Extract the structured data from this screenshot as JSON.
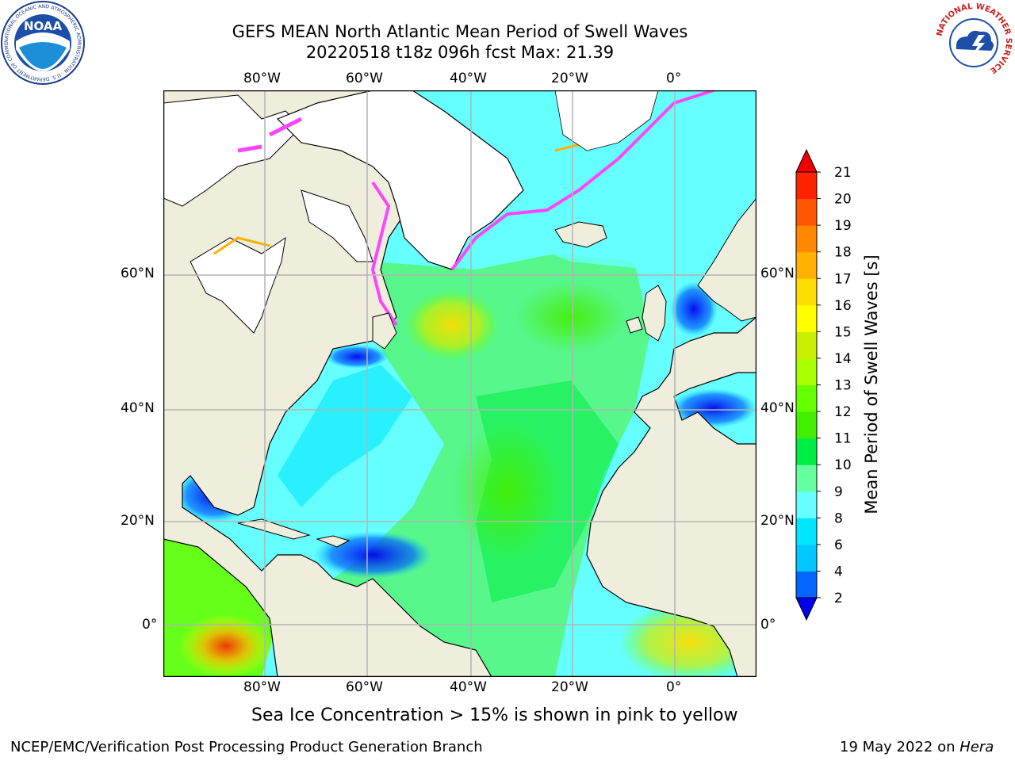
{
  "title": {
    "line1": "GEFS MEAN North Atlantic Mean Period of Swell Waves",
    "line2": "20220518 t18z 096h fcst   Max: 21.39"
  },
  "map": {
    "lon_range": [
      -100,
      16
    ],
    "lat_range": [
      -10,
      77
    ],
    "lon_ticks": [
      "80°W",
      "60°W",
      "40°W",
      "20°W",
      "0°"
    ],
    "lat_ticks": [
      "60°N",
      "40°N",
      "20°N",
      "0°"
    ],
    "gridlines": true,
    "colors": {
      "land": "#efeedd",
      "ice_land": "#ffffff",
      "coast": "#000000",
      "grid": "#b4b4b4",
      "sea_ice": "#ff44ff"
    }
  },
  "colorbar": {
    "label": "Mean Period of Swell Waves [s]",
    "ticks": [
      "2",
      "4",
      "6",
      "8",
      "9",
      "10",
      "11",
      "12",
      "13",
      "14",
      "15",
      "16",
      "17",
      "18",
      "19",
      "20",
      "21"
    ],
    "colors": [
      "#0000ee",
      "#0066ff",
      "#00c8ff",
      "#00e6ff",
      "#66ffff",
      "#66ffa0",
      "#00ee44",
      "#44ee00",
      "#66ff00",
      "#aaff00",
      "#ccee00",
      "#ffff00",
      "#ffdd00",
      "#ffb000",
      "#ff8800",
      "#ff5500",
      "#ff2200",
      "#ee0000"
    ],
    "extend": "both"
  },
  "footnote": "Sea Ice Concentration > 15% is shown in pink to yellow",
  "credits": {
    "left": "NCEP/EMC/Verification Post Processing Product Generation Branch",
    "date": "19 May 2022 on ",
    "machine": "Hera"
  },
  "logos": {
    "noaa": "NOAA",
    "noaa_ring": "NATIONAL OCEANIC AND ATMOSPHERIC ADMINISTRATION · U.S. DEPARTMENT OF COMMERCE ·",
    "nws_ring": "NATIONAL WEATHER SERVICE"
  }
}
